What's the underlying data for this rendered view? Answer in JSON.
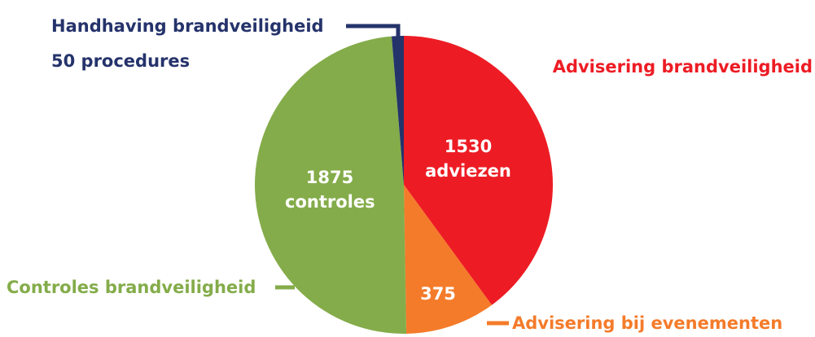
{
  "chart_data": {
    "type": "pie",
    "categories": [
      "Advisering brandveiligheid",
      "Advisering bij evenementen",
      "Controles brandveiligheid",
      "Handhaving brandveiligheid"
    ],
    "values": [
      1530,
      375,
      1875,
      50
    ],
    "value_labels": [
      "1530 adviezen",
      "375",
      "1875 controles",
      "50 procedures"
    ],
    "colors": [
      "#ed1c24",
      "#f47b2a",
      "#84ac4a",
      "#25336b"
    ]
  }
}
